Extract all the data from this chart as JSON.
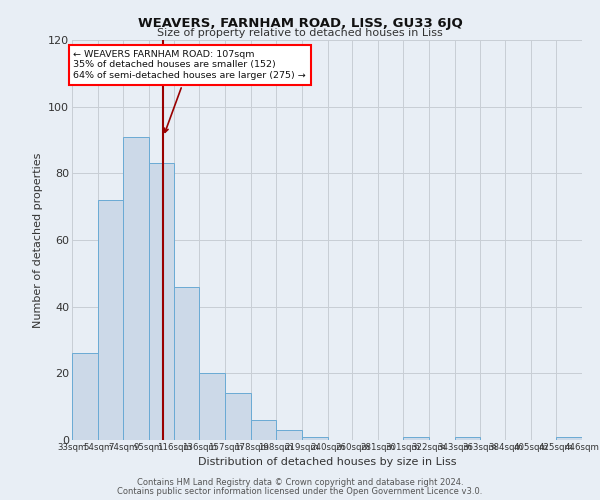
{
  "title": "WEAVERS, FARNHAM ROAD, LISS, GU33 6JQ",
  "subtitle": "Size of property relative to detached houses in Liss",
  "xlabel": "Distribution of detached houses by size in Liss",
  "ylabel": "Number of detached properties",
  "bar_color": "#ccd9e8",
  "bar_edge_color": "#6aaad4",
  "background_color": "#e8eef5",
  "bins": [
    33,
    54,
    74,
    95,
    116,
    136,
    157,
    178,
    198,
    219,
    240,
    260,
    281,
    301,
    322,
    343,
    363,
    384,
    405,
    425,
    446
  ],
  "bin_labels": [
    "33sqm",
    "54sqm",
    "74sqm",
    "95sqm",
    "116sqm",
    "136sqm",
    "157sqm",
    "178sqm",
    "198sqm",
    "219sqm",
    "240sqm",
    "260sqm",
    "281sqm",
    "301sqm",
    "322sqm",
    "343sqm",
    "363sqm",
    "384sqm",
    "405sqm",
    "425sqm",
    "446sqm"
  ],
  "counts": [
    26,
    72,
    91,
    83,
    46,
    20,
    14,
    6,
    3,
    1,
    0,
    0,
    0,
    1,
    0,
    1,
    0,
    0,
    0,
    1
  ],
  "property_size": 107,
  "vline_color": "#990000",
  "ann_line1": "← WEAVERS FARNHAM ROAD: 107sqm",
  "ann_line2": "35% of detached houses are smaller (152)",
  "ann_line3": "64% of semi-detached houses are larger (275) →",
  "footer_line1": "Contains HM Land Registry data © Crown copyright and database right 2024.",
  "footer_line2": "Contains public sector information licensed under the Open Government Licence v3.0.",
  "ylim": [
    0,
    120
  ],
  "yticks": [
    0,
    20,
    40,
    60,
    80,
    100,
    120
  ],
  "grid_color": "#c8cdd4"
}
